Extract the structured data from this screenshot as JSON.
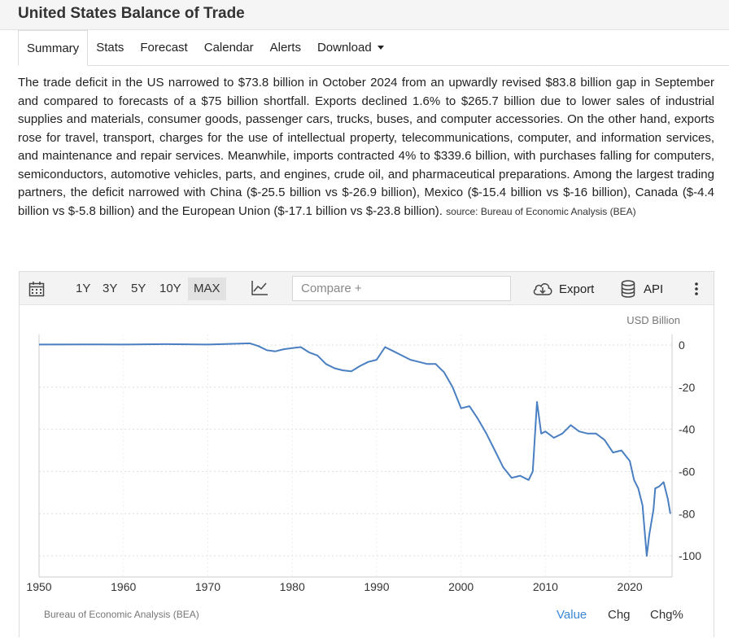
{
  "page": {
    "title": "United States Balance of Trade"
  },
  "tabs": [
    {
      "label": "Summary",
      "active": true
    },
    {
      "label": "Stats"
    },
    {
      "label": "Forecast"
    },
    {
      "label": "Calendar"
    },
    {
      "label": "Alerts"
    },
    {
      "label": "Download",
      "dropdown": true
    }
  ],
  "summary": {
    "text": "The trade deficit in the US narrowed to $73.8 billion in October 2024 from an upwardly revised $83.8 billion gap in September and compared to forecasts of a $75 billion shortfall. Exports declined 1.6% to $265.7 billion due to lower sales of industrial supplies and materials, consumer goods, passenger cars, trucks, buses, and computer accessories. On the other hand, exports rose for travel, transport, charges for the use of intellectual property, telecommunications, computer, and information services, and maintenance and repair services. Meanwhile, imports contracted 4% to $339.6 billion, with purchases falling for computers, semiconductors, automotive vehicles, parts, and engines, crude oil, and pharmaceutical preparations. Among the largest trading partners, the deficit narrowed with China ($-25.5 billion vs $-26.9 billion), Mexico ($-15.4 billion vs $-16 billion), Canada ($-4.4 billion vs $-5.8 billion) and the European Union ($-17.1 billion vs $-23.8 billion).",
    "source": "source: Bureau of Economic Analysis (BEA)"
  },
  "toolbar": {
    "calendar_icon": "calendar-icon",
    "ranges": [
      {
        "label": "1Y"
      },
      {
        "label": "3Y"
      },
      {
        "label": "5Y"
      },
      {
        "label": "10Y"
      },
      {
        "label": "MAX",
        "active": true
      }
    ],
    "chart_type_icon": "line-chart-icon",
    "compare_placeholder": "Compare +",
    "export_label": "Export",
    "export_icon": "cloud-download-icon",
    "api_label": "API",
    "api_icon": "database-icon",
    "menu_icon": "more-vertical-icon"
  },
  "chart_data": {
    "type": "line",
    "unit_label": "USD Billion",
    "xlim": [
      1950,
      2025
    ],
    "ylim": [
      -110,
      5
    ],
    "x_ticks": [
      1950,
      1960,
      1970,
      1980,
      1990,
      2000,
      2010,
      2020
    ],
    "y_ticks": [
      0,
      -20,
      -40,
      -60,
      -80,
      -100
    ],
    "grid": true,
    "line_color": "#4a7fc1",
    "series": [
      {
        "x": [
          1950,
          1955,
          1960,
          1965,
          1970,
          1975,
          1976,
          1977,
          1978,
          1979,
          1980,
          1981,
          1982,
          1983,
          1984,
          1985,
          1986,
          1987,
          1988,
          1989,
          1990,
          1991,
          1992,
          1993,
          1994,
          1995,
          1996,
          1997,
          1998,
          1999,
          2000,
          2001,
          2002,
          2003,
          2004,
          2005,
          2006,
          2007,
          2008,
          2008.5,
          2009,
          2009.5,
          2010,
          2011,
          2012,
          2013,
          2014,
          2015,
          2016,
          2017,
          2018,
          2019,
          2020,
          2020.5,
          2021,
          2021.5,
          2022,
          2022.3,
          2022.8,
          2023,
          2023.5,
          2024,
          2024.5,
          2024.8
        ],
        "y": [
          0.2,
          0.3,
          0.2,
          0.4,
          0.2,
          0.8,
          -0.5,
          -2.5,
          -3,
          -2,
          -1.5,
          -1,
          -3.5,
          -5,
          -9,
          -11,
          -12,
          -12.5,
          -10,
          -8,
          -7,
          -1,
          -3,
          -5,
          -7,
          -8,
          -9,
          -9,
          -13,
          -20,
          -30,
          -29,
          -35,
          -42,
          -50,
          -58,
          -63,
          -62,
          -64,
          -60,
          -27,
          -42,
          -41,
          -44,
          -42,
          -38,
          -41,
          -42,
          -42,
          -45,
          -51,
          -50,
          -55,
          -64,
          -68,
          -76,
          -100,
          -90,
          -78,
          -68,
          -67,
          -65,
          -73,
          -80
        ]
      }
    ],
    "footer_source": "Bureau of Economic Analysis (BEA)",
    "view_modes": [
      {
        "label": "Value",
        "active": true
      },
      {
        "label": "Chg"
      },
      {
        "label": "Chg%"
      }
    ]
  }
}
